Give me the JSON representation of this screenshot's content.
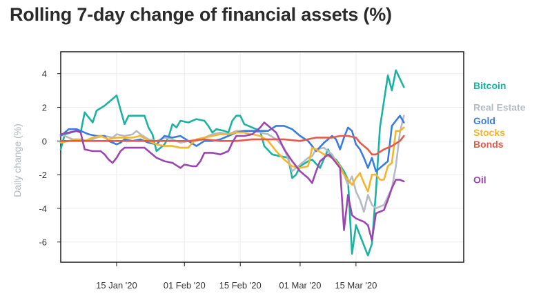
{
  "chart_data": {
    "type": "line",
    "title": "Rolling 7-day change of financial assets (%)",
    "ylabel": "Daily change (%)",
    "xlabel": "",
    "ylim": [
      -7.2,
      5.3
    ],
    "xlim": [
      -14,
      87
    ],
    "yticks": [
      4,
      2,
      0,
      -2,
      -4,
      -6
    ],
    "xticks": [
      {
        "label": "15 Jan '20",
        "day": 0
      },
      {
        "label": "01 Feb '20",
        "day": 17
      },
      {
        "label": "15 Feb '20",
        "day": 31
      },
      {
        "label": "01 Mar '20",
        "day": 46
      },
      {
        "label": "15 Mar '20",
        "day": 60
      }
    ],
    "grid": true,
    "legend": "right, labels at line ends",
    "series": [
      {
        "name": "Bitcoin",
        "color": "#1bb3a0",
        "points": [
          [
            -14,
            -0.5
          ],
          [
            -13,
            0.4
          ],
          [
            -10,
            0.6
          ],
          [
            -9,
            0.5
          ],
          [
            -8,
            1.7
          ],
          [
            -6,
            1.1
          ],
          [
            -5,
            1.8
          ],
          [
            -3,
            2.1
          ],
          [
            -2,
            2.3
          ],
          [
            0,
            2.7
          ],
          [
            2,
            1.0
          ],
          [
            3,
            1.5
          ],
          [
            7,
            1.5
          ],
          [
            8,
            0.8
          ],
          [
            9,
            0.4
          ],
          [
            10,
            -0.6
          ],
          [
            12,
            -0.2
          ],
          [
            13,
            0.2
          ],
          [
            14,
            1.0
          ],
          [
            15,
            0.8
          ],
          [
            16,
            1.2
          ],
          [
            18,
            1.1
          ],
          [
            20,
            1.3
          ],
          [
            22,
            1.2
          ],
          [
            23,
            0.9
          ],
          [
            24,
            0.5
          ],
          [
            25,
            0.7
          ],
          [
            27,
            0.6
          ],
          [
            28,
            0.5
          ],
          [
            29,
            1.2
          ],
          [
            30,
            1.5
          ],
          [
            31,
            1.5
          ],
          [
            32,
            1.0
          ],
          [
            36,
            0.6
          ],
          [
            37,
            -0.3
          ],
          [
            39,
            -0.8
          ],
          [
            41,
            -0.9
          ],
          [
            43,
            -1.0
          ],
          [
            44,
            -2.2
          ],
          [
            45,
            -2.0
          ],
          [
            46,
            -1.5
          ],
          [
            48,
            -1.2
          ],
          [
            49,
            -1.1
          ],
          [
            51,
            -1.6
          ],
          [
            53,
            -0.5
          ],
          [
            54,
            -1.0
          ],
          [
            55,
            -1.1
          ],
          [
            57,
            -1.8
          ],
          [
            58,
            -2.3
          ],
          [
            59,
            -6.7
          ],
          [
            60,
            -5.0
          ],
          [
            62,
            -6.2
          ],
          [
            63,
            -6.8
          ],
          [
            64,
            -6.1
          ],
          [
            65,
            -3.0
          ],
          [
            66,
            0.8
          ],
          [
            68,
            3.9
          ],
          [
            69,
            3.0
          ],
          [
            70,
            4.2
          ],
          [
            72,
            3.2
          ]
        ]
      },
      {
        "name": "Real Estate",
        "color": "#b4bbc3",
        "points": [
          [
            -14,
            0.4
          ],
          [
            -13,
            0.3
          ],
          [
            -11,
            0.1
          ],
          [
            -9,
            0.1
          ],
          [
            -7,
            0.0
          ],
          [
            -5,
            0.2
          ],
          [
            -3,
            0.3
          ],
          [
            -1,
            0.2
          ],
          [
            0,
            0.4
          ],
          [
            2,
            0.3
          ],
          [
            4,
            0.4
          ],
          [
            5,
            0.6
          ],
          [
            6,
            0.4
          ],
          [
            8,
            0.1
          ],
          [
            10,
            0.0
          ],
          [
            12,
            0.2
          ],
          [
            14,
            0.1
          ],
          [
            16,
            -0.1
          ],
          [
            18,
            0.0
          ],
          [
            20,
            0.0
          ],
          [
            22,
            0.2
          ],
          [
            24,
            0.4
          ],
          [
            26,
            0.5
          ],
          [
            28,
            0.4
          ],
          [
            30,
            0.6
          ],
          [
            32,
            0.6
          ],
          [
            34,
            0.6
          ],
          [
            36,
            0.5
          ],
          [
            38,
            0.4
          ],
          [
            40,
            0.1
          ],
          [
            42,
            -0.4
          ],
          [
            44,
            -1.8
          ],
          [
            46,
            -1.4
          ],
          [
            48,
            -1.0
          ],
          [
            49,
            -0.9
          ],
          [
            50,
            -0.5
          ],
          [
            52,
            -0.4
          ],
          [
            54,
            -0.8
          ],
          [
            55,
            -1.2
          ],
          [
            56,
            -1.6
          ],
          [
            57,
            -2.0
          ],
          [
            58,
            -2.6
          ],
          [
            59,
            -2.1
          ],
          [
            60,
            -3.0
          ],
          [
            61,
            -3.5
          ],
          [
            62,
            -4.2
          ],
          [
            63,
            -3.2
          ],
          [
            64,
            -3.8
          ],
          [
            65,
            -4.0
          ],
          [
            67,
            -3.8
          ],
          [
            69,
            -2.8
          ],
          [
            70,
            -1.5
          ],
          [
            71,
            0.5
          ],
          [
            72,
            1.5
          ]
        ]
      },
      {
        "name": "Gold",
        "color": "#3a7bdf",
        "points": [
          [
            -14,
            0.3
          ],
          [
            -12,
            0.7
          ],
          [
            -10,
            0.7
          ],
          [
            -9,
            0.6
          ],
          [
            -7,
            0.4
          ],
          [
            -5,
            0.3
          ],
          [
            -3,
            0.3
          ],
          [
            -2,
            0.0
          ],
          [
            0,
            -0.2
          ],
          [
            1,
            -0.1
          ],
          [
            2,
            0.1
          ],
          [
            4,
            0.0
          ],
          [
            6,
            0.1
          ],
          [
            8,
            -0.1
          ],
          [
            10,
            -0.2
          ],
          [
            12,
            0.3
          ],
          [
            14,
            0.2
          ],
          [
            16,
            0.3
          ],
          [
            18,
            0.0
          ],
          [
            20,
            -0.3
          ],
          [
            22,
            0.0
          ],
          [
            24,
            0.0
          ],
          [
            26,
            0.1
          ],
          [
            28,
            0.3
          ],
          [
            30,
            0.5
          ],
          [
            32,
            0.6
          ],
          [
            34,
            0.6
          ],
          [
            36,
            0.6
          ],
          [
            38,
            0.6
          ],
          [
            40,
            0.9
          ],
          [
            42,
            0.9
          ],
          [
            44,
            0.7
          ],
          [
            46,
            0.3
          ],
          [
            48,
            0.0
          ],
          [
            49,
            -0.3
          ],
          [
            50,
            -0.6
          ],
          [
            52,
            -0.1
          ],
          [
            54,
            0.3
          ],
          [
            55,
            0.1
          ],
          [
            56,
            -0.5
          ],
          [
            57,
            0.2
          ],
          [
            58,
            0.8
          ],
          [
            59,
            0.6
          ],
          [
            60,
            -0.2
          ],
          [
            61,
            -0.5
          ],
          [
            62,
            -1.0
          ],
          [
            63,
            -1.6
          ],
          [
            64,
            -1.0
          ],
          [
            65,
            -1.8
          ],
          [
            66,
            -1.6
          ],
          [
            68,
            -1.2
          ],
          [
            69,
            0.9
          ],
          [
            70,
            1.2
          ],
          [
            71,
            1.5
          ],
          [
            72,
            1.1
          ]
        ]
      },
      {
        "name": "Stocks",
        "color": "#f5b52b",
        "points": [
          [
            -14,
            -0.1
          ],
          [
            -12,
            0.0
          ],
          [
            -10,
            0.1
          ],
          [
            -8,
            0.0
          ],
          [
            -6,
            0.2
          ],
          [
            -4,
            0.3
          ],
          [
            -2,
            0.1
          ],
          [
            0,
            0.2
          ],
          [
            2,
            0.2
          ],
          [
            4,
            0.2
          ],
          [
            6,
            0.3
          ],
          [
            8,
            0.0
          ],
          [
            10,
            -0.2
          ],
          [
            12,
            -0.3
          ],
          [
            14,
            -0.3
          ],
          [
            16,
            -0.4
          ],
          [
            18,
            -0.4
          ],
          [
            19,
            -0.1
          ],
          [
            20,
            0.1
          ],
          [
            22,
            0.2
          ],
          [
            24,
            0.3
          ],
          [
            26,
            0.4
          ],
          [
            28,
            0.4
          ],
          [
            30,
            0.5
          ],
          [
            32,
            0.5
          ],
          [
            34,
            0.4
          ],
          [
            36,
            0.3
          ],
          [
            38,
            0.0
          ],
          [
            40,
            -0.6
          ],
          [
            42,
            -1.1
          ],
          [
            44,
            -1.5
          ],
          [
            46,
            -1.6
          ],
          [
            48,
            -1.5
          ],
          [
            49,
            -0.4
          ],
          [
            50,
            -0.5
          ],
          [
            52,
            -0.8
          ],
          [
            54,
            -1.0
          ],
          [
            55,
            -1.2
          ],
          [
            56,
            -1.5
          ],
          [
            57,
            -2.0
          ],
          [
            58,
            -2.3
          ],
          [
            59,
            -2.6
          ],
          [
            60,
            -2.2
          ],
          [
            61,
            -1.9
          ],
          [
            62,
            -2.5
          ],
          [
            63,
            -3.0
          ],
          [
            64,
            -2.0
          ],
          [
            65,
            -2.0
          ],
          [
            66,
            -2.3
          ],
          [
            67,
            -2.3
          ],
          [
            68,
            -1.5
          ],
          [
            69,
            -1.3
          ],
          [
            70,
            0.6
          ],
          [
            71,
            0.6
          ],
          [
            72,
            0.8
          ]
        ]
      },
      {
        "name": "Bonds",
        "color": "#e8594a",
        "points": [
          [
            -14,
            0.0
          ],
          [
            -10,
            0.0
          ],
          [
            -6,
            0.0
          ],
          [
            -2,
            0.0
          ],
          [
            2,
            0.0
          ],
          [
            6,
            0.0
          ],
          [
            10,
            0.0
          ],
          [
            14,
            0.0
          ],
          [
            18,
            0.0
          ],
          [
            22,
            0.1
          ],
          [
            26,
            0.0
          ],
          [
            30,
            0.0
          ],
          [
            34,
            0.1
          ],
          [
            38,
            0.1
          ],
          [
            42,
            0.1
          ],
          [
            46,
            0.0
          ],
          [
            50,
            0.2
          ],
          [
            54,
            0.2
          ],
          [
            56,
            0.3
          ],
          [
            58,
            0.3
          ],
          [
            60,
            0.2
          ],
          [
            61,
            -0.1
          ],
          [
            62,
            -0.3
          ],
          [
            63,
            -0.5
          ],
          [
            64,
            -0.8
          ],
          [
            65,
            -0.8
          ],
          [
            67,
            -0.5
          ],
          [
            69,
            -0.3
          ],
          [
            71,
            0.0
          ],
          [
            72,
            0.3
          ]
        ]
      },
      {
        "name": "Oil",
        "color": "#9b46b0",
        "points": [
          [
            -14,
            0.4
          ],
          [
            -12,
            0.5
          ],
          [
            -10,
            0.6
          ],
          [
            -9,
            0.5
          ],
          [
            -8,
            -0.5
          ],
          [
            -6,
            -0.6
          ],
          [
            -4,
            -0.6
          ],
          [
            -3,
            -0.8
          ],
          [
            -2,
            -1.1
          ],
          [
            -1,
            -1.3
          ],
          [
            0,
            -1.0
          ],
          [
            1,
            -0.6
          ],
          [
            2,
            -0.4
          ],
          [
            4,
            -0.4
          ],
          [
            7,
            -0.4
          ],
          [
            8,
            -0.6
          ],
          [
            10,
            -1.0
          ],
          [
            12,
            -1.2
          ],
          [
            14,
            -1.3
          ],
          [
            16,
            -1.6
          ],
          [
            17,
            -1.4
          ],
          [
            19,
            -1.5
          ],
          [
            20,
            -1.5
          ],
          [
            21,
            -1.2
          ],
          [
            22,
            -0.7
          ],
          [
            24,
            -0.7
          ],
          [
            26,
            -0.8
          ],
          [
            28,
            -0.6
          ],
          [
            29,
            -0.1
          ],
          [
            30,
            0.3
          ],
          [
            32,
            0.3
          ],
          [
            34,
            0.4
          ],
          [
            36,
            0.8
          ],
          [
            37,
            1.1
          ],
          [
            38,
            0.9
          ],
          [
            40,
            0.5
          ],
          [
            42,
            -0.5
          ],
          [
            44,
            -1.2
          ],
          [
            46,
            -1.8
          ],
          [
            48,
            -2.2
          ],
          [
            49,
            -2.5
          ],
          [
            50,
            -1.8
          ],
          [
            51,
            -1.2
          ],
          [
            52,
            -1.0
          ],
          [
            53,
            -0.8
          ],
          [
            54,
            -1.0
          ],
          [
            55,
            -1.3
          ],
          [
            56,
            -1.6
          ],
          [
            57,
            -5.3
          ],
          [
            58,
            -3.2
          ],
          [
            59,
            -4.4
          ],
          [
            60,
            -4.6
          ],
          [
            62,
            -4.8
          ],
          [
            63,
            -5.0
          ],
          [
            64,
            -5.9
          ],
          [
            65,
            -4.3
          ],
          [
            66,
            -4.2
          ],
          [
            67,
            -4.1
          ],
          [
            68,
            -3.5
          ],
          [
            69,
            -2.8
          ],
          [
            70,
            -2.3
          ],
          [
            71,
            -2.3
          ],
          [
            72,
            -2.4
          ]
        ]
      }
    ]
  }
}
